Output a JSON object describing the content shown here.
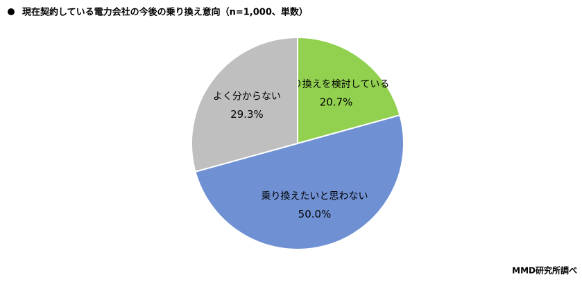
{
  "chart_data": {
    "type": "pie",
    "title": "現在契約している電力会社の今後の乗り換え意向（n=1,000、単数）",
    "categories": [
      "乗り換えを検討している",
      "乗り換えたいと思わない",
      "よく分からない"
    ],
    "values": [
      20.7,
      50.0,
      29.3
    ],
    "value_labels": [
      "20.7%",
      "50.0%",
      "29.3%"
    ],
    "colors": [
      "#92d050",
      "#6f91d4",
      "#bfbfbf"
    ],
    "source": "MMD研究所調べ"
  }
}
